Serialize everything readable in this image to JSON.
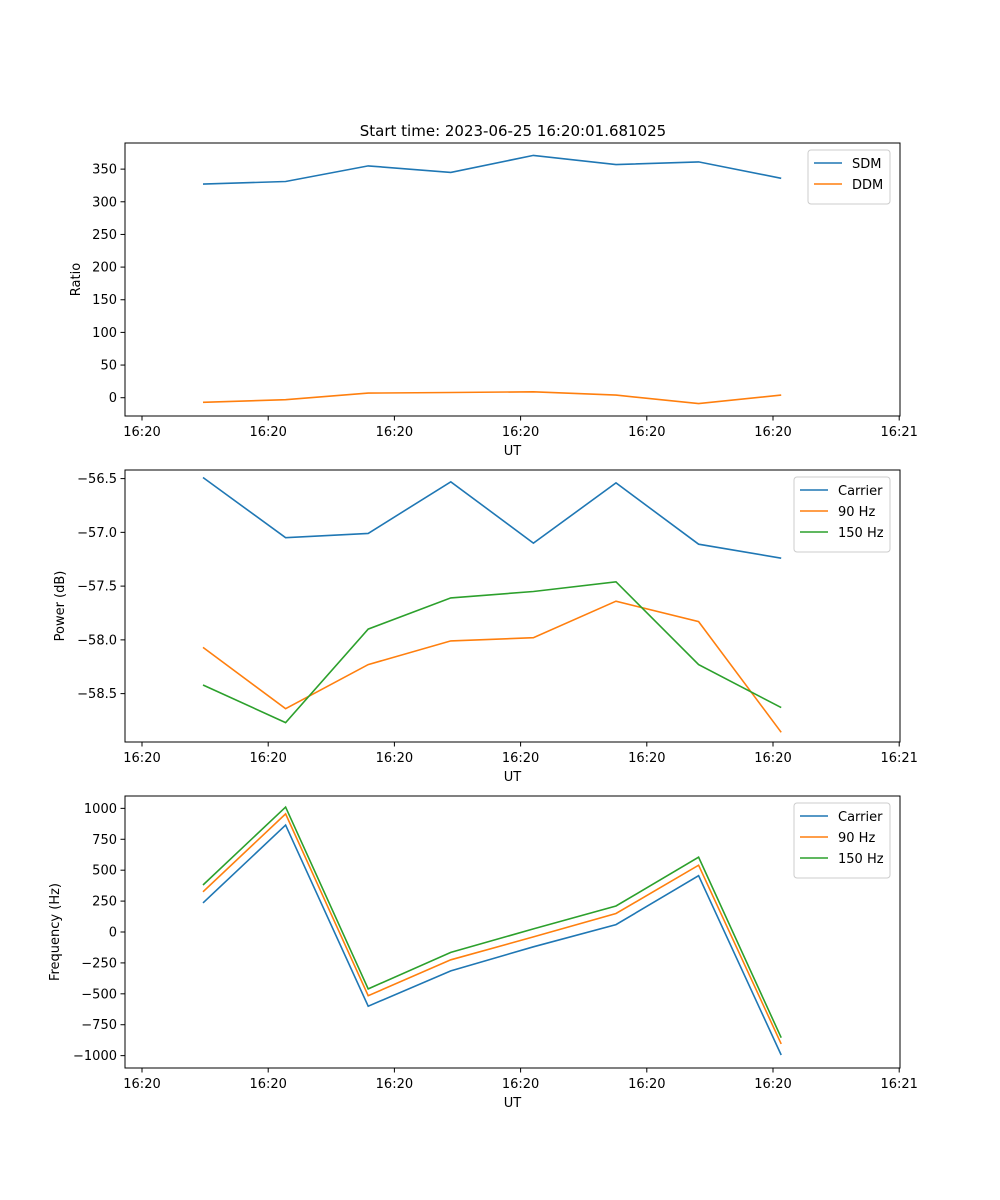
{
  "figure": {
    "title": "Start time: 2023-06-25 16:20:01.681025"
  },
  "chart_data": [
    {
      "type": "line",
      "xlabel": "UT",
      "ylabel": "Ratio",
      "xticks": [
        "16:20",
        "16:20",
        "16:20",
        "16:20",
        "16:20",
        "16:20",
        "16:21"
      ],
      "ylim": [
        -28,
        390
      ],
      "yticks": [
        0,
        50,
        100,
        150,
        200,
        250,
        300,
        350
      ],
      "legend": "upper right",
      "series": [
        {
          "name": "SDM",
          "color": "#1f77b4",
          "values": [
            327,
            331,
            355,
            345,
            371,
            357,
            361,
            336
          ]
        },
        {
          "name": "DDM",
          "color": "#ff7f0e",
          "values": [
            -7,
            -3,
            7,
            8,
            9,
            4,
            -9,
            4
          ]
        }
      ]
    },
    {
      "type": "line",
      "xlabel": "UT",
      "ylabel": "Power (dB)",
      "xticks": [
        "16:20",
        "16:20",
        "16:20",
        "16:20",
        "16:20",
        "16:20",
        "16:21"
      ],
      "ylim": [
        -58.95,
        -56.42
      ],
      "yticks": [
        -58.5,
        -58.0,
        -57.5,
        -57.0,
        -56.5
      ],
      "ytick_labels": [
        "−58.5",
        "−58.0",
        "−57.5",
        "−57.0",
        "−56.5"
      ],
      "legend": "upper right",
      "series": [
        {
          "name": "Carrier",
          "color": "#1f77b4",
          "values": [
            -56.49,
            -57.05,
            -57.01,
            -56.53,
            -57.1,
            -56.54,
            -57.11,
            -57.24
          ]
        },
        {
          "name": "90 Hz",
          "color": "#ff7f0e",
          "values": [
            -58.07,
            -58.64,
            -58.23,
            -58.01,
            -57.98,
            -57.64,
            -57.83,
            -58.86
          ]
        },
        {
          "name": "150 Hz",
          "color": "#2ca02c",
          "values": [
            -58.42,
            -58.77,
            -57.9,
            -57.61,
            -57.55,
            -57.46,
            -58.23,
            -58.63
          ]
        }
      ]
    },
    {
      "type": "line",
      "xlabel": "UT",
      "ylabel": "Frequency (Hz)",
      "xticks": [
        "16:20",
        "16:20",
        "16:20",
        "16:20",
        "16:20",
        "16:20",
        "16:21"
      ],
      "ylim": [
        -1100,
        1100
      ],
      "yticks": [
        -1000,
        -750,
        -500,
        -250,
        0,
        250,
        500,
        750,
        1000
      ],
      "ytick_labels": [
        "−1000",
        "−750",
        "−500",
        "−250",
        "0",
        "250",
        "500",
        "750",
        "1000"
      ],
      "legend": "upper right",
      "series": [
        {
          "name": "Carrier",
          "color": "#1f77b4",
          "values": [
            235,
            865,
            -600,
            -315,
            -120,
            60,
            455,
            -995
          ]
        },
        {
          "name": "90 Hz",
          "color": "#ff7f0e",
          "values": [
            325,
            955,
            -515,
            -225,
            -40,
            150,
            540,
            -905
          ]
        },
        {
          "name": "150 Hz",
          "color": "#2ca02c",
          "values": [
            380,
            1010,
            -460,
            -165,
            25,
            210,
            605,
            -855
          ]
        }
      ]
    }
  ]
}
